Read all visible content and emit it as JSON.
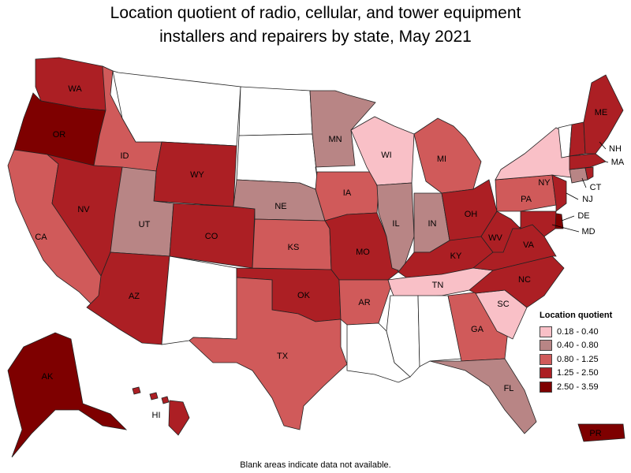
{
  "title_line1": "Location quotient of radio, cellular, and tower equipment",
  "title_line2": "installers and repairers by state, May 2021",
  "legend": {
    "title": "Location quotient",
    "items": [
      {
        "label": "0.18 - 0.40",
        "color": "#f9c0c7"
      },
      {
        "label": "0.40 - 0.80",
        "color": "#b88585"
      },
      {
        "label": "0.80 - 1.25",
        "color": "#d05a5a"
      },
      {
        "label": "1.25 - 2.50",
        "color": "#ac1f24"
      },
      {
        "label": "2.50 - 3.59",
        "color": "#7e0000"
      }
    ]
  },
  "no_data_color": "#ffffff",
  "footnote": "Blank areas indicate data not available.",
  "states": {
    "WA": {
      "label": "WA",
      "class": 3
    },
    "OR": {
      "label": "OR",
      "class": 4
    },
    "CA": {
      "label": "CA",
      "class": 2
    },
    "ID": {
      "label": "ID",
      "class": 2
    },
    "NV": {
      "label": "NV",
      "class": 3
    },
    "MT": {
      "label": "",
      "class": -1
    },
    "WY": {
      "label": "WY",
      "class": 3
    },
    "UT": {
      "label": "UT",
      "class": 1
    },
    "AZ": {
      "label": "AZ",
      "class": 3
    },
    "CO": {
      "label": "CO",
      "class": 3
    },
    "NM": {
      "label": "",
      "class": -1
    },
    "ND": {
      "label": "",
      "class": -1
    },
    "SD": {
      "label": "",
      "class": -1
    },
    "NE": {
      "label": "NE",
      "class": 1
    },
    "KS": {
      "label": "KS",
      "class": 2
    },
    "OK": {
      "label": "OK",
      "class": 3
    },
    "TX": {
      "label": "TX",
      "class": 2
    },
    "MN": {
      "label": "MN",
      "class": 1
    },
    "IA": {
      "label": "IA",
      "class": 2
    },
    "MO": {
      "label": "MO",
      "class": 3
    },
    "AR": {
      "label": "AR",
      "class": 2
    },
    "LA": {
      "label": "",
      "class": -1
    },
    "WI": {
      "label": "WI",
      "class": 0
    },
    "IL": {
      "label": "IL",
      "class": 1
    },
    "MI": {
      "label": "MI",
      "class": 2
    },
    "IN": {
      "label": "IN",
      "class": 1
    },
    "OH": {
      "label": "OH",
      "class": 3
    },
    "KY": {
      "label": "KY",
      "class": 3
    },
    "TN": {
      "label": "TN",
      "class": 0
    },
    "MS": {
      "label": "",
      "class": -1
    },
    "AL": {
      "label": "",
      "class": -1
    },
    "GA": {
      "label": "GA",
      "class": 2
    },
    "FL": {
      "label": "FL",
      "class": 1
    },
    "SC": {
      "label": "SC",
      "class": 0
    },
    "NC": {
      "label": "NC",
      "class": 3
    },
    "VA": {
      "label": "VA",
      "class": 3
    },
    "WV": {
      "label": "WV",
      "class": 3
    },
    "PA": {
      "label": "PA",
      "class": 2
    },
    "NY": {
      "label": "NY",
      "class": 0
    },
    "NJ": {
      "label": "NJ",
      "class": 3
    },
    "DE": {
      "label": "DE",
      "class": 4
    },
    "MD": {
      "label": "MD",
      "class": 3
    },
    "CT": {
      "label": "CT",
      "class": 1
    },
    "MA": {
      "label": "MA",
      "class": 3
    },
    "RI": {
      "label": "",
      "class": 3
    },
    "VT": {
      "label": "",
      "class": -1
    },
    "NH": {
      "label": "NH",
      "class": 3
    },
    "ME": {
      "label": "ME",
      "class": 3
    },
    "AK": {
      "label": "AK",
      "class": 4
    },
    "HI": {
      "label": "HI",
      "class": 3
    },
    "PR": {
      "label": "PR",
      "class": 4
    }
  }
}
